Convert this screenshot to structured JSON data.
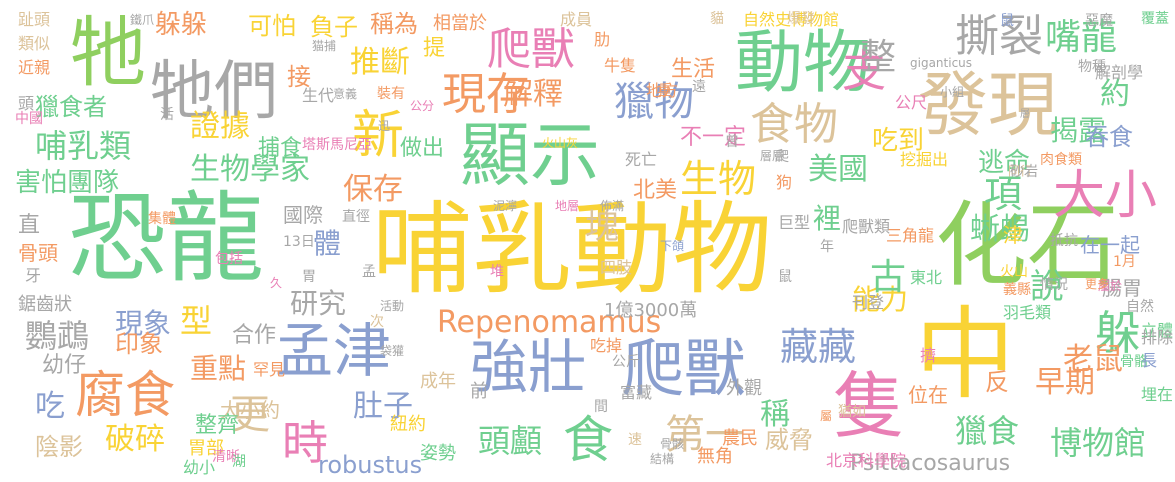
{
  "palette": {
    "yellow": "#f9d335",
    "green": "#6fcf8f",
    "lime": "#8fcf5f",
    "blue": "#8a9fcf",
    "tan": "#dcc39a",
    "orange": "#f39a63",
    "gray": "#a7a7a7",
    "pink": "#e97fb5",
    "teal": "#6bc9b0"
  },
  "words": [
    {
      "text": "哺乳動物",
      "color": "yellow"
    },
    {
      "text": "恐龍",
      "color": "green"
    },
    {
      "text": "化石",
      "color": "lime"
    },
    {
      "text": "中",
      "color": "yellow"
    },
    {
      "text": "發現",
      "color": "tan"
    },
    {
      "text": "顯示",
      "color": "green"
    },
    {
      "text": "牠們",
      "color": "gray"
    },
    {
      "text": "牠",
      "color": "lime"
    },
    {
      "text": "動物",
      "color": "green"
    },
    {
      "text": "孟津",
      "color": "blue"
    },
    {
      "text": "強壯",
      "color": "blue"
    },
    {
      "text": "爬獸",
      "color": "blue"
    },
    {
      "text": "隻",
      "color": "pink"
    },
    {
      "text": "腐食",
      "color": "orange"
    },
    {
      "text": "大小",
      "color": "pink"
    },
    {
      "text": "新",
      "color": "yellow"
    },
    {
      "text": "食物",
      "color": "tan"
    },
    {
      "text": "Repenomamus",
      "color": "orange"
    },
    {
      "text": "撕裂",
      "color": "gray"
    },
    {
      "text": "嘴龍",
      "color": "green"
    },
    {
      "text": "爬獸",
      "color": "pink"
    },
    {
      "text": "現存",
      "color": "orange"
    },
    {
      "text": "支",
      "color": "pink"
    },
    {
      "text": "獵物",
      "color": "blue"
    },
    {
      "text": "時",
      "color": "pink"
    },
    {
      "text": "食",
      "color": "green"
    },
    {
      "text": "藏藏",
      "color": "blue"
    },
    {
      "text": "躲",
      "color": "green"
    },
    {
      "text": "生物學家",
      "color": "green"
    },
    {
      "text": "證據",
      "color": "yellow"
    },
    {
      "text": "哺乳類",
      "color": "green"
    },
    {
      "text": "推斷",
      "color": "yellow"
    },
    {
      "text": "解釋",
      "color": "orange"
    },
    {
      "text": "頭顱",
      "color": "green"
    },
    {
      "text": "第一",
      "color": "tan"
    },
    {
      "text": "肚子",
      "color": "blue"
    },
    {
      "text": "破碎",
      "color": "yellow"
    },
    {
      "text": "博物館",
      "color": "green"
    },
    {
      "text": "揭露",
      "color": "green"
    },
    {
      "text": "項",
      "color": "green"
    },
    {
      "text": "美國",
      "color": "green"
    },
    {
      "text": "獵食",
      "color": "green"
    },
    {
      "text": "早期",
      "color": "orange"
    },
    {
      "text": "生物",
      "color": "yellow"
    },
    {
      "text": "保存",
      "color": "orange"
    },
    {
      "text": "研究",
      "color": "gray"
    },
    {
      "text": "鸚鵡",
      "color": "gray"
    },
    {
      "text": "能力",
      "color": "yellow"
    },
    {
      "text": "說",
      "color": "green"
    },
    {
      "text": "整",
      "color": "gray"
    },
    {
      "text": "塊",
      "color": "tan"
    },
    {
      "text": "古",
      "color": "green"
    },
    {
      "text": "蜥蜴",
      "color": "green"
    },
    {
      "text": "稱",
      "color": "green"
    },
    {
      "text": "老鼠",
      "color": "orange"
    },
    {
      "text": "更",
      "color": "tan"
    },
    {
      "text": "吃",
      "color": "blue"
    },
    {
      "text": "約",
      "color": "green"
    },
    {
      "text": "現象",
      "color": "blue"
    },
    {
      "text": "重點",
      "color": "orange"
    },
    {
      "text": "印象",
      "color": "orange"
    },
    {
      "text": "型",
      "color": "yellow"
    },
    {
      "text": "體",
      "color": "blue"
    },
    {
      "text": "逃命",
      "color": "green"
    },
    {
      "text": "吞食",
      "color": "blue"
    },
    {
      "text": "害怕團隊",
      "color": "green"
    },
    {
      "text": "獵食者",
      "color": "green"
    },
    {
      "text": "幼仔",
      "color": "gray"
    },
    {
      "text": "陰影",
      "color": "tan"
    },
    {
      "text": "反",
      "color": "orange"
    },
    {
      "text": "威脅",
      "color": "tan"
    },
    {
      "text": "吃到",
      "color": "yellow"
    },
    {
      "text": "不一定",
      "color": "pink"
    },
    {
      "text": "裡",
      "color": "green"
    },
    {
      "text": "robustus",
      "color": "blue"
    },
    {
      "text": "合作",
      "color": "gray"
    },
    {
      "text": "大小約",
      "color": "tan"
    },
    {
      "text": "做出",
      "color": "green"
    },
    {
      "text": "捕食",
      "color": "green"
    },
    {
      "text": "北美",
      "color": "orange"
    },
    {
      "text": "國際",
      "color": "gray"
    },
    {
      "text": "提",
      "color": "yellow"
    },
    {
      "text": "躲躲",
      "color": "orange"
    },
    {
      "text": "可怕",
      "color": "yellow"
    },
    {
      "text": "負子",
      "color": "yellow"
    },
    {
      "text": "稱為",
      "color": "orange"
    },
    {
      "text": "接",
      "color": "orange"
    },
    {
      "text": "生活",
      "color": "orange"
    },
    {
      "text": "整齊",
      "color": "green"
    },
    {
      "text": "胃部",
      "color": "yellow"
    },
    {
      "text": "幼小",
      "color": "green"
    },
    {
      "text": "姿勢",
      "color": "green"
    },
    {
      "text": "無角",
      "color": "orange"
    },
    {
      "text": "農民",
      "color": "orange"
    },
    {
      "text": "位在",
      "color": "orange"
    },
    {
      "text": "在一起",
      "color": "blue"
    },
    {
      "text": "Psittacosaurus",
      "color": "gray"
    },
    {
      "text": "鋸齒狀",
      "color": "gray"
    },
    {
      "text": "1億3000萬",
      "color": "gray"
    },
    {
      "text": "紐約",
      "color": "yellow"
    },
    {
      "text": "成年",
      "color": "tan"
    },
    {
      "text": "前",
      "color": "gray"
    },
    {
      "text": "相當於",
      "color": "orange"
    },
    {
      "text": "自然史博物館",
      "color": "yellow"
    },
    {
      "text": "成員",
      "color": "tan"
    },
    {
      "text": "牛隻",
      "color": "orange"
    },
    {
      "text": "地方",
      "color": "orange"
    },
    {
      "text": "肋",
      "color": "orange"
    },
    {
      "text": "三角龍",
      "color": "orange"
    },
    {
      "text": "骨骼",
      "color": "green"
    },
    {
      "text": "四肢",
      "color": "tan"
    },
    {
      "text": "趾頭",
      "color": "tan"
    },
    {
      "text": "類似",
      "color": "tan"
    },
    {
      "text": "近親",
      "color": "orange"
    },
    {
      "text": "頭",
      "color": "gray"
    },
    {
      "text": "直",
      "color": "gray"
    },
    {
      "text": "骨頭",
      "color": "orange"
    },
    {
      "text": "牙",
      "color": "gray"
    },
    {
      "text": "生代",
      "color": "gray"
    },
    {
      "text": "裝有",
      "color": "orange"
    },
    {
      "text": "罕見",
      "color": "orange"
    },
    {
      "text": "外觀",
      "color": "gray"
    },
    {
      "text": "擠",
      "color": "pink"
    },
    {
      "text": "富藏",
      "color": "gray"
    },
    {
      "text": "解剖學",
      "color": "gray"
    },
    {
      "text": "物種",
      "color": "gray"
    },
    {
      "text": "gigan­ticus",
      "color": "gray"
    },
    {
      "text": "羽毛類",
      "color": "green"
    },
    {
      "text": "東北",
      "color": "green"
    },
    {
      "text": "刊登",
      "color": "gray"
    },
    {
      "text": "13日",
      "color": "gray"
    },
    {
      "text": "意義",
      "color": "gray"
    },
    {
      "text": "中國",
      "color": "pink"
    },
    {
      "text": "挖掘出",
      "color": "yellow"
    },
    {
      "text": "肉食類",
      "color": "orange"
    },
    {
      "text": "巨型",
      "color": "gray"
    },
    {
      "text": "爬獸類",
      "color": "gray"
    },
    {
      "text": "年",
      "color": "gray"
    },
    {
      "text": "腸胃",
      "color": "gray"
    },
    {
      "text": "1月",
      "color": "orange"
    },
    {
      "text": "屬於",
      "color": "pink"
    },
    {
      "text": "更多",
      "color": "orange"
    },
    {
      "text": "火山",
      "color": "yellow"
    },
    {
      "text": "津",
      "color": "yellow"
    },
    {
      "text": "抵抗",
      "color": "gray"
    },
    {
      "text": "義縣",
      "color": "orange"
    },
    {
      "text": "情況",
      "color": "gray"
    },
    {
      "text": "埋在",
      "color": "green"
    },
    {
      "text": "立體",
      "color": "green"
    },
    {
      "text": "排除",
      "color": "gray"
    },
    {
      "text": "長",
      "color": "blue"
    },
    {
      "text": "自然",
      "color": "gray"
    },
    {
      "text": "北京科學院",
      "color": "pink"
    },
    {
      "text": "塔斯馬尼亞",
      "color": "pink"
    },
    {
      "text": "火山灰",
      "color": "yellow"
    },
    {
      "text": "包括",
      "color": "pink"
    },
    {
      "text": "集體",
      "color": "orange"
    },
    {
      "text": "泥濘",
      "color": "gray"
    },
    {
      "text": "地層",
      "color": "pink"
    },
    {
      "text": "佈滿",
      "color": "gray"
    },
    {
      "text": "下頜",
      "color": "blue"
    },
    {
      "text": "同行",
      "color": "tan"
    },
    {
      "text": "覆蓋",
      "color": "green"
    },
    {
      "text": "惡魔",
      "color": "gray"
    },
    {
      "text": "爆發",
      "color": "tan"
    },
    {
      "text": "貓",
      "color": "tan"
    },
    {
      "text": "鼠",
      "color": "blue"
    },
    {
      "text": "狗",
      "color": "orange"
    },
    {
      "text": "死亡",
      "color": "gray"
    },
    {
      "text": "袋獾",
      "color": "gray"
    },
    {
      "text": "吃掉",
      "color": "orange"
    },
    {
      "text": "次",
      "color": "tan"
    },
    {
      "text": "公斤",
      "color": "gray"
    },
    {
      "text": "間",
      "color": "gray"
    },
    {
      "text": "速",
      "color": "tan"
    },
    {
      "text": "骨骸",
      "color": "gray"
    },
    {
      "text": "結構",
      "color": "gray"
    },
    {
      "text": "清晰",
      "color": "pink"
    },
    {
      "text": "湖",
      "color": "green"
    },
    {
      "text": "堆",
      "color": "pink"
    },
    {
      "text": "胃",
      "color": "gray"
    },
    {
      "text": "孟",
      "color": "gray"
    },
    {
      "text": "活動",
      "color": "gray"
    },
    {
      "text": "久",
      "color": "pink"
    },
    {
      "text": "直徑",
      "color": "gray"
    },
    {
      "text": "鼠",
      "color": "gray"
    },
    {
      "text": "曾",
      "color": "gray"
    },
    {
      "text": "砂岩",
      "color": "gray"
    },
    {
      "text": "小組",
      "color": "gray"
    },
    {
      "text": "公尺",
      "color": "pink"
    },
    {
      "text": "迅",
      "color": "gray"
    },
    {
      "text": "活",
      "color": "gray"
    },
    {
      "text": "公分",
      "color": "pink"
    },
    {
      "text": "重",
      "color": "orange"
    },
    {
      "text": "遠",
      "color": "gray"
    },
    {
      "text": "猶如",
      "color": "tan"
    },
    {
      "text": "層",
      "color": "gray"
    },
    {
      "text": "鐵爪",
      "color": "gray"
    },
    {
      "text": "猫捕",
      "color": "gray"
    },
    {
      "text": "層層",
      "color": "gray"
    },
    {
      "text": "爬",
      "color": "gray"
    },
    {
      "text": "屬",
      "color": "orange"
    }
  ]
}
